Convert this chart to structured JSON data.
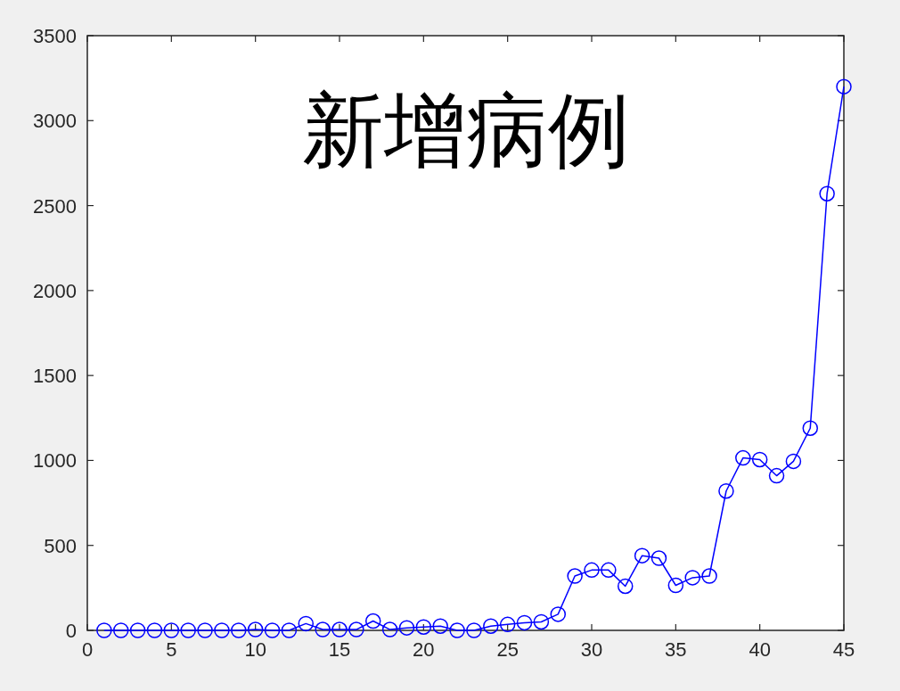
{
  "chart_data": {
    "type": "line",
    "title": "新增病例",
    "x": [
      1,
      2,
      3,
      4,
      5,
      6,
      7,
      8,
      9,
      10,
      11,
      12,
      13,
      14,
      15,
      16,
      17,
      18,
      19,
      20,
      21,
      22,
      23,
      24,
      25,
      26,
      27,
      28,
      29,
      30,
      31,
      32,
      33,
      34,
      35,
      36,
      37,
      38,
      39,
      40,
      41,
      42,
      43,
      44,
      45
    ],
    "series": [
      {
        "color": "#0000ff",
        "marker": "circle",
        "values": [
          0,
          0,
          0,
          0,
          0,
          0,
          0,
          0,
          0,
          5,
          0,
          0,
          40,
          5,
          5,
          5,
          55,
          5,
          15,
          20,
          25,
          0,
          0,
          25,
          35,
          45,
          50,
          95,
          320,
          355,
          355,
          260,
          440,
          425,
          265,
          310,
          320,
          820,
          1015,
          1005,
          910,
          995,
          1190,
          2570,
          3200
        ]
      }
    ],
    "xlim": [
      0,
      45
    ],
    "xticks": [
      0,
      5,
      10,
      15,
      20,
      25,
      30,
      35,
      40,
      45
    ],
    "ylim": [
      0,
      3500
    ],
    "yticks": [
      0,
      500,
      1000,
      1500,
      2000,
      2500,
      3000,
      3500
    ]
  }
}
